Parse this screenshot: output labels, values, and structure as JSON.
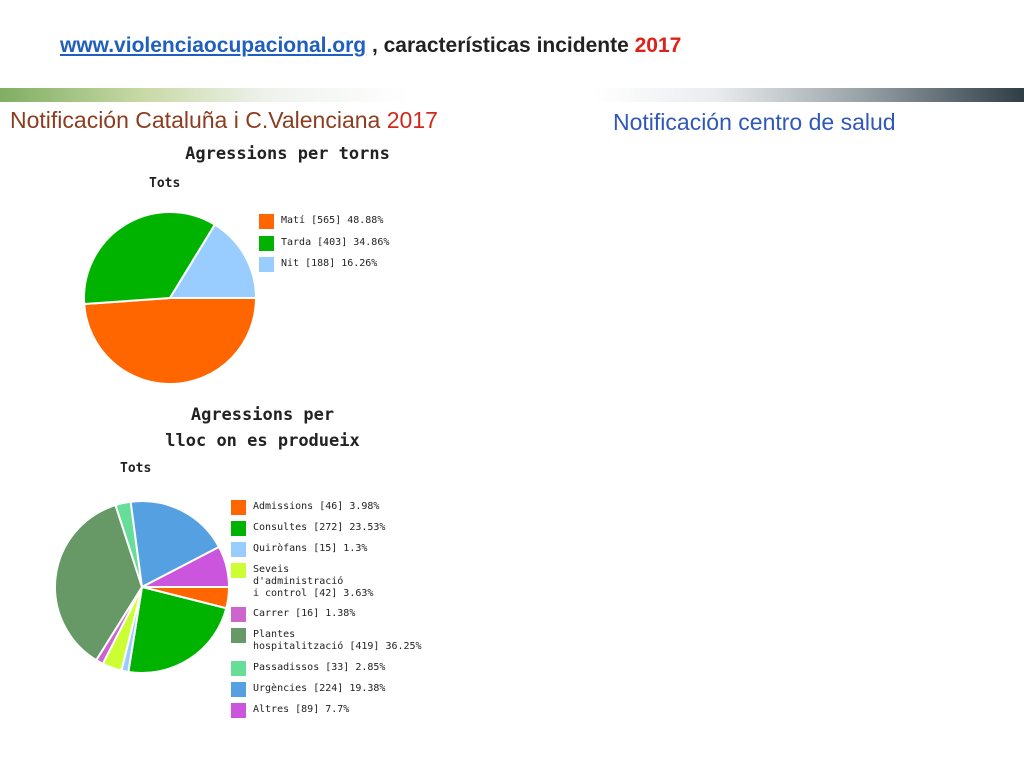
{
  "header": {
    "link": "www.violenciaocupacional.org",
    "text": " , características incidente ",
    "year": "2017"
  },
  "subtitle_left": {
    "text": "Notificación Cataluña i C.Valenciana ",
    "year": "2017"
  },
  "subtitle_right": {
    "text": "Notificación centro de salud"
  },
  "chart_data": [
    {
      "type": "pie",
      "title": "Agressions per torns",
      "subtitle": "Tots",
      "slices": [
        {
          "label": "Matí [565] 48.88%",
          "value": 48.88,
          "color": "#ff6600"
        },
        {
          "label": "Tarda [403] 34.86%",
          "value": 34.86,
          "color": "#00b300"
        },
        {
          "label": "Nit [188] 16.26%",
          "value": 16.26,
          "color": "#99ccff"
        }
      ]
    },
    {
      "type": "pie",
      "title": "Agressions per\nlloc on es produeix",
      "subtitle": "Tots",
      "slices": [
        {
          "label": "Admissions [46] 3.98%",
          "value": 3.98,
          "color": "#ff6600"
        },
        {
          "label": "Consultes [272] 23.53%",
          "value": 23.53,
          "color": "#00b300"
        },
        {
          "label": "Quiròfans [15] 1.3%",
          "value": 1.3,
          "color": "#99ccff"
        },
        {
          "label": "Seveis\nd'administració\ni control [42] 3.63%",
          "value": 3.63,
          "color": "#ccff33"
        },
        {
          "label": "Carrer [16] 1.38%",
          "value": 1.38,
          "color": "#cc66cc"
        },
        {
          "label": "Plantes\nhospitalització [419] 36.25%",
          "value": 36.25,
          "color": "#669966"
        },
        {
          "label": "Passadissos [33] 2.85%",
          "value": 2.85,
          "color": "#66dd99"
        },
        {
          "label": "Urgències [224] 19.38%",
          "value": 19.38,
          "color": "#55a0e0"
        },
        {
          "label": "Altres [89] 7.7%",
          "value": 7.7,
          "color": "#cc55dd"
        }
      ]
    }
  ]
}
